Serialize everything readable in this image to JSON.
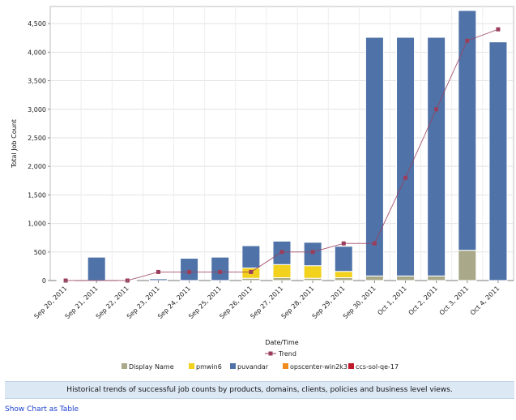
{
  "chart_data": {
    "type": "bar",
    "stacked": true,
    "xlabel": "Date/Time",
    "ylabel": "Total Job Count",
    "ylim": [
      0,
      4800
    ],
    "yticks": [
      0,
      500,
      1000,
      1500,
      2000,
      2500,
      3000,
      3500,
      4000,
      4500
    ],
    "ytick_labels": [
      "0",
      "500",
      "1,000",
      "1,500",
      "2,000",
      "2,500",
      "3,000",
      "3,500",
      "4,000",
      "4,500"
    ],
    "grid": true,
    "categories": [
      "Sep 20, 2011",
      "Sep 21, 2011",
      "Sep 22, 2011",
      "Sep 23, 2011",
      "Sep 24, 2011",
      "Sep 25, 2011",
      "Sep 26, 2011",
      "Sep 27, 2011",
      "Sep 28, 2011",
      "Sep 29, 2011",
      "Sep 30, 2011",
      "Oct 1, 2011",
      "Oct 2, 2011",
      "Oct 3, 2011",
      "Oct 4, 2011"
    ],
    "series": [
      {
        "name": "Display Name",
        "color": "#a9a98a",
        "values": [
          0,
          0,
          0,
          0,
          0,
          0,
          40,
          50,
          40,
          50,
          80,
          80,
          80,
          530,
          0
        ]
      },
      {
        "name": "pmwin6",
        "color": "#f2d21c",
        "values": [
          0,
          0,
          0,
          0,
          0,
          0,
          180,
          230,
          220,
          110,
          0,
          0,
          0,
          0,
          0
        ]
      },
      {
        "name": "puvandar",
        "color": "#4f73a8",
        "values": [
          10,
          410,
          10,
          30,
          390,
          410,
          390,
          410,
          410,
          440,
          4180,
          4180,
          4180,
          4200,
          4180
        ]
      },
      {
        "name": "opscenter-win2k3",
        "color": "#f08c1e",
        "values": [
          0,
          0,
          0,
          0,
          0,
          0,
          0,
          0,
          0,
          0,
          0,
          0,
          0,
          0,
          0
        ]
      },
      {
        "name": "ccs-sol-qe-17",
        "color": "#c0192c",
        "values": [
          0,
          0,
          0,
          0,
          0,
          0,
          0,
          0,
          0,
          0,
          0,
          0,
          0,
          0,
          0
        ]
      }
    ],
    "trend": {
      "name": "Trend",
      "color": "#9a3e5c",
      "values": [
        0,
        null,
        0,
        150,
        150,
        150,
        150,
        500,
        500,
        650,
        650,
        1800,
        3000,
        4200,
        4400
      ]
    },
    "legend_position": "bottom"
  },
  "caption": "Historical trends of successful job counts by products, domains, clients, policies and business level views.",
  "link": {
    "label": "Show Chart as Table"
  }
}
